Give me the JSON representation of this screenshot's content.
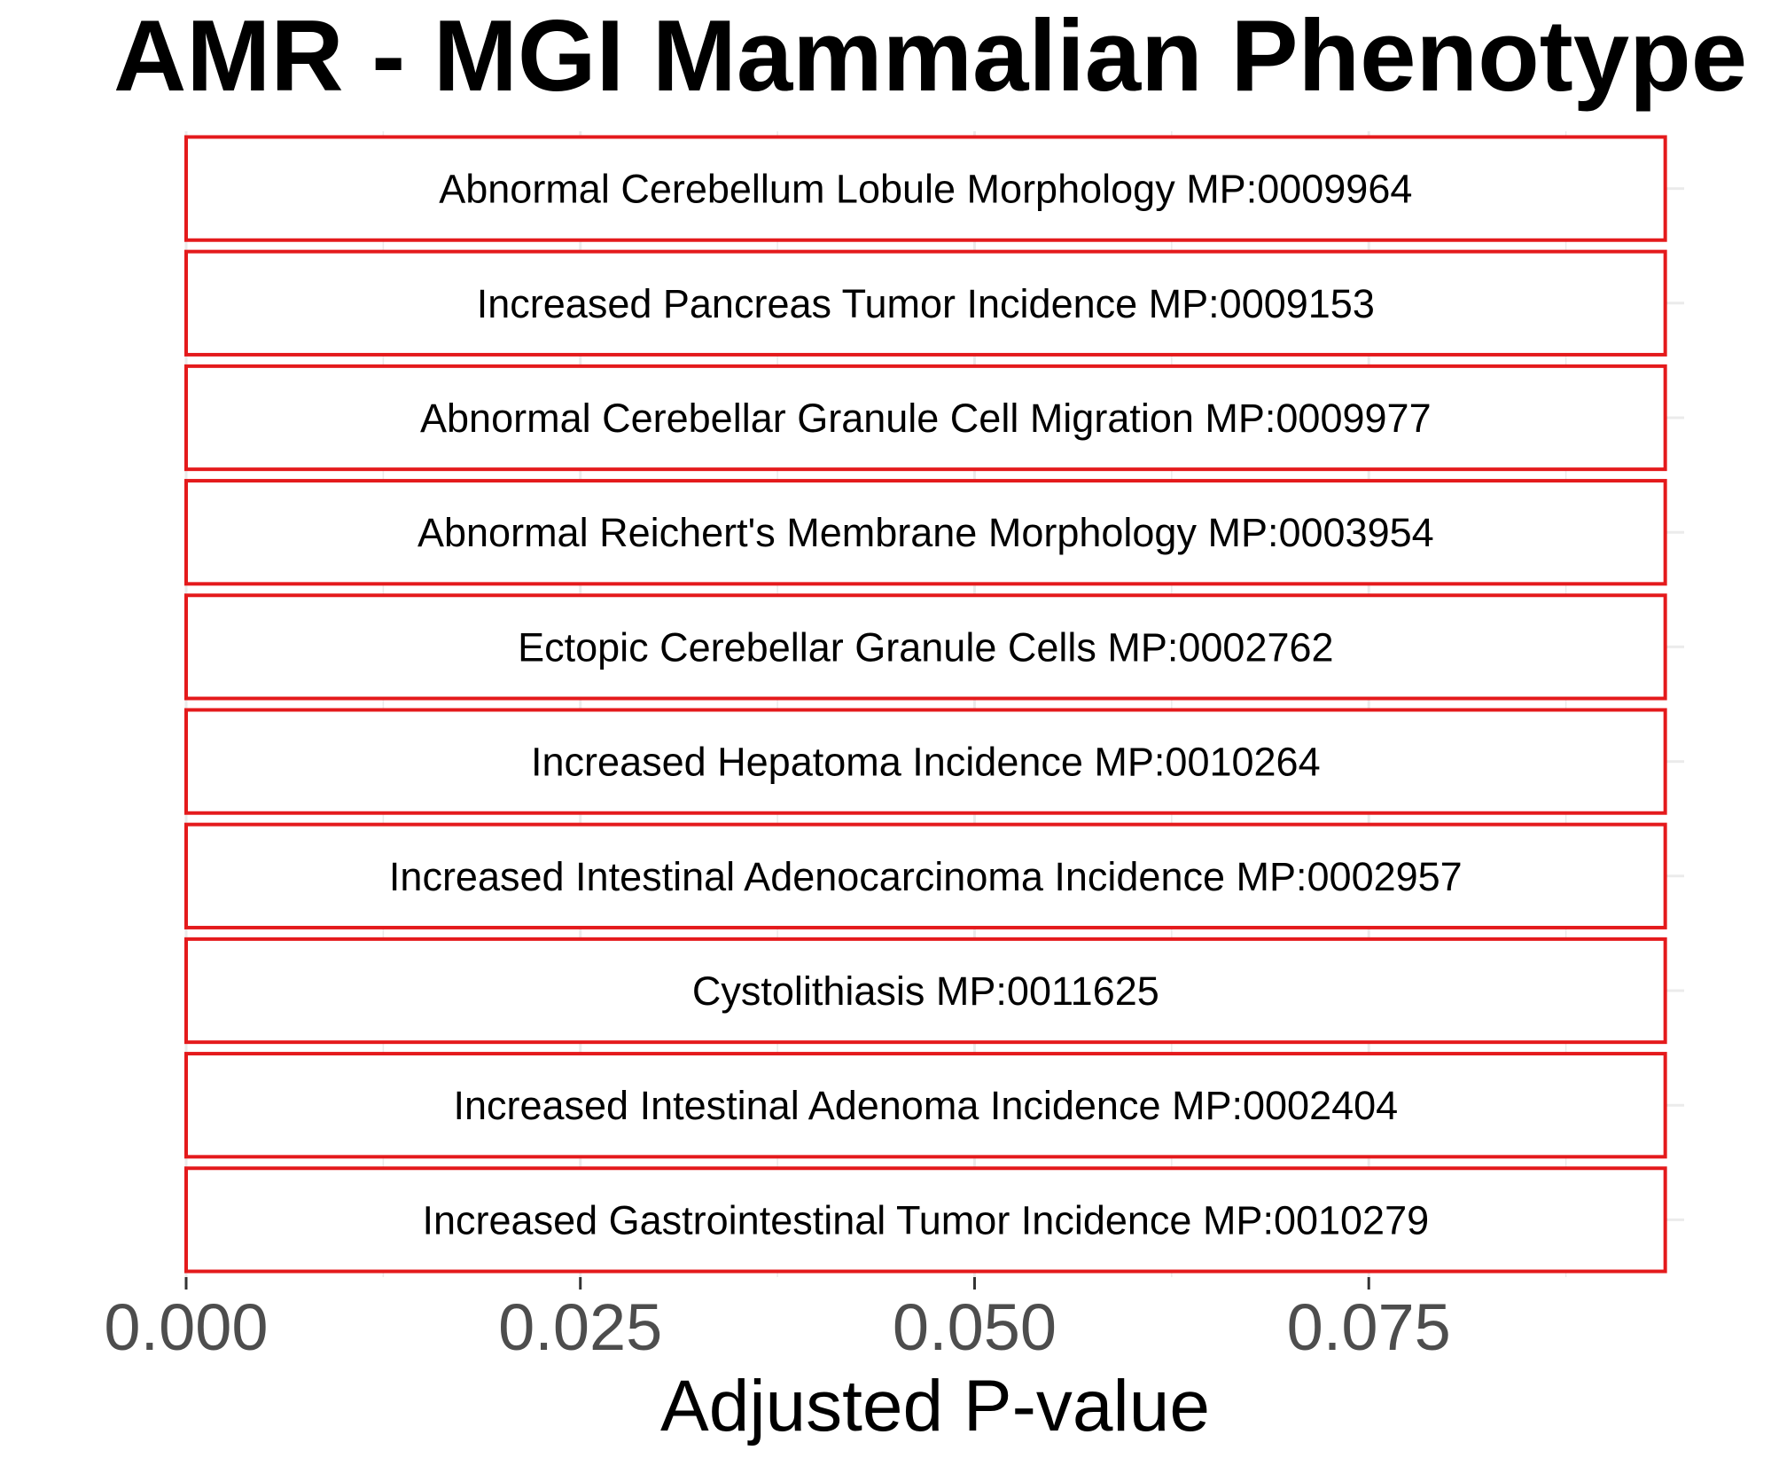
{
  "chart_data": {
    "type": "bar",
    "orientation": "horizontal",
    "title": "AMR  -  MGI Mammalian Phenotype Le",
    "xlabel": "Adjusted P-value",
    "ylabel": "",
    "xlim": [
      0,
      0.095
    ],
    "x_ticks": [
      0,
      0.025,
      0.05,
      0.075
    ],
    "x_tick_labels": [
      "0.000",
      "0.025",
      "0.050",
      "0.075"
    ],
    "grid": true,
    "bar_fill": "#ffffff",
    "bar_outline": "#e41a1c",
    "categories": [
      "Abnormal Cerebellum Lobule Morphology MP:0009964",
      "Increased Pancreas Tumor Incidence MP:0009153",
      "Abnormal Cerebellar Granule Cell Migration MP:0009977",
      "Abnormal Reichert's Membrane Morphology MP:0003954",
      "Ectopic Cerebellar Granule Cells MP:0002762",
      "Increased Hepatoma Incidence MP:0010264",
      "Increased Intestinal Adenocarcinoma Incidence MP:0002957",
      "Cystolithiasis MP:0011625",
      "Increased Intestinal Adenoma Incidence MP:0002404",
      "Increased Gastrointestinal Tumor Incidence MP:0010279"
    ],
    "values": [
      0.0938,
      0.0938,
      0.0938,
      0.0938,
      0.0938,
      0.0938,
      0.0938,
      0.0938,
      0.0938,
      0.0938
    ]
  }
}
